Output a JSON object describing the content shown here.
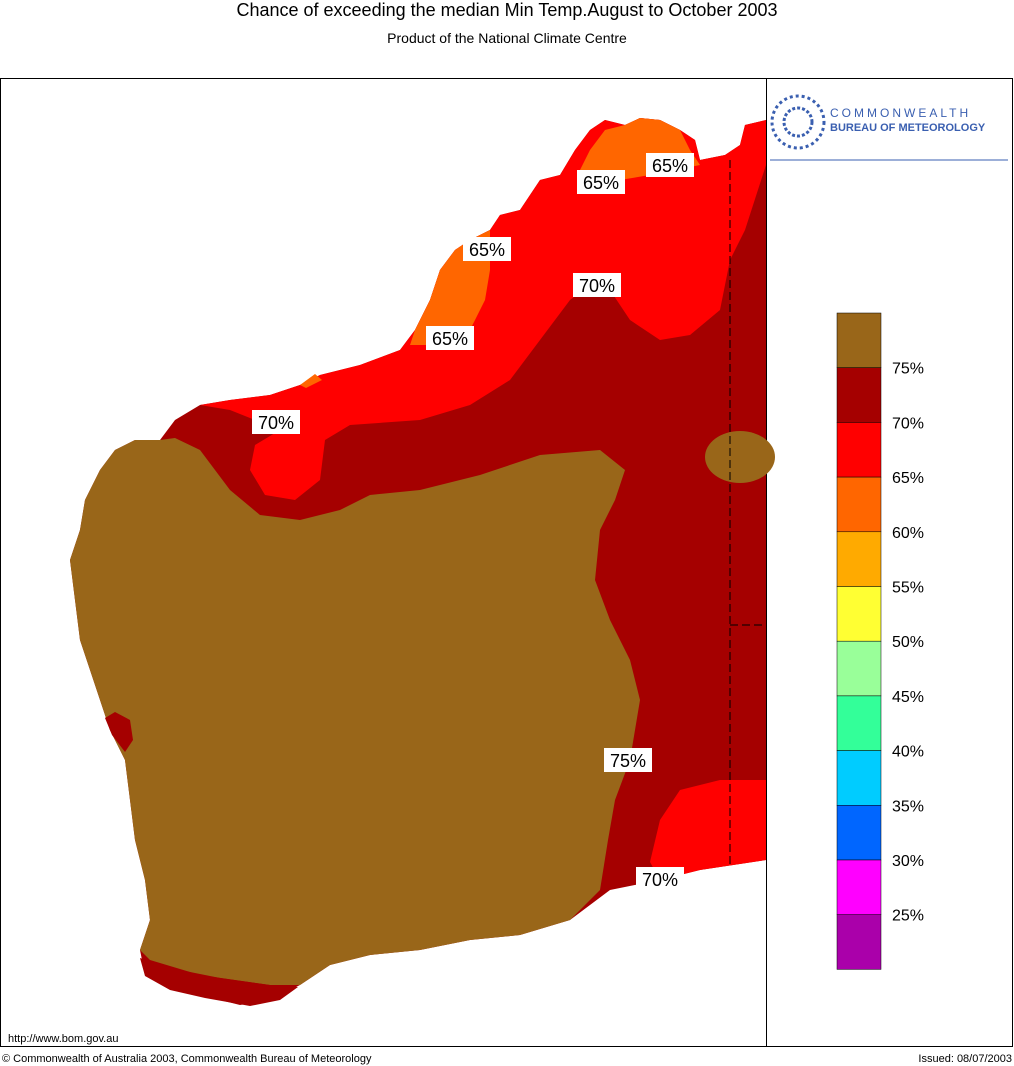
{
  "header": {
    "title": "Chance of exceeding the median Min Temp.August to October 2003",
    "subtitle": "Product of the National Climate Centre"
  },
  "logo": {
    "line1": "COMMONWEALTH",
    "line2": "BUREAU OF METEOROLOGY"
  },
  "map": {
    "contour_labels": [
      "65%",
      "65%",
      "65%",
      "65%",
      "70%",
      "70%",
      "75%",
      "70%"
    ]
  },
  "legend": {
    "colors": [
      "#996619",
      "#a50000",
      "#ff0000",
      "#ff6600",
      "#ffaa00",
      "#ffff33",
      "#99ff99",
      "#33ff99",
      "#00ccff",
      "#0066ff",
      "#ff00ff",
      "#aa00aa"
    ],
    "labels": [
      "75%",
      "70%",
      "65%",
      "60%",
      "55%",
      "50%",
      "45%",
      "40%",
      "35%",
      "30%",
      "25%"
    ]
  },
  "footer": {
    "url": "http://www.bom.gov.au",
    "copyright": "© Commonwealth of Australia 2003, Commonwealth Bureau of Meteorology",
    "issued": "Issued: 08/07/2003"
  }
}
